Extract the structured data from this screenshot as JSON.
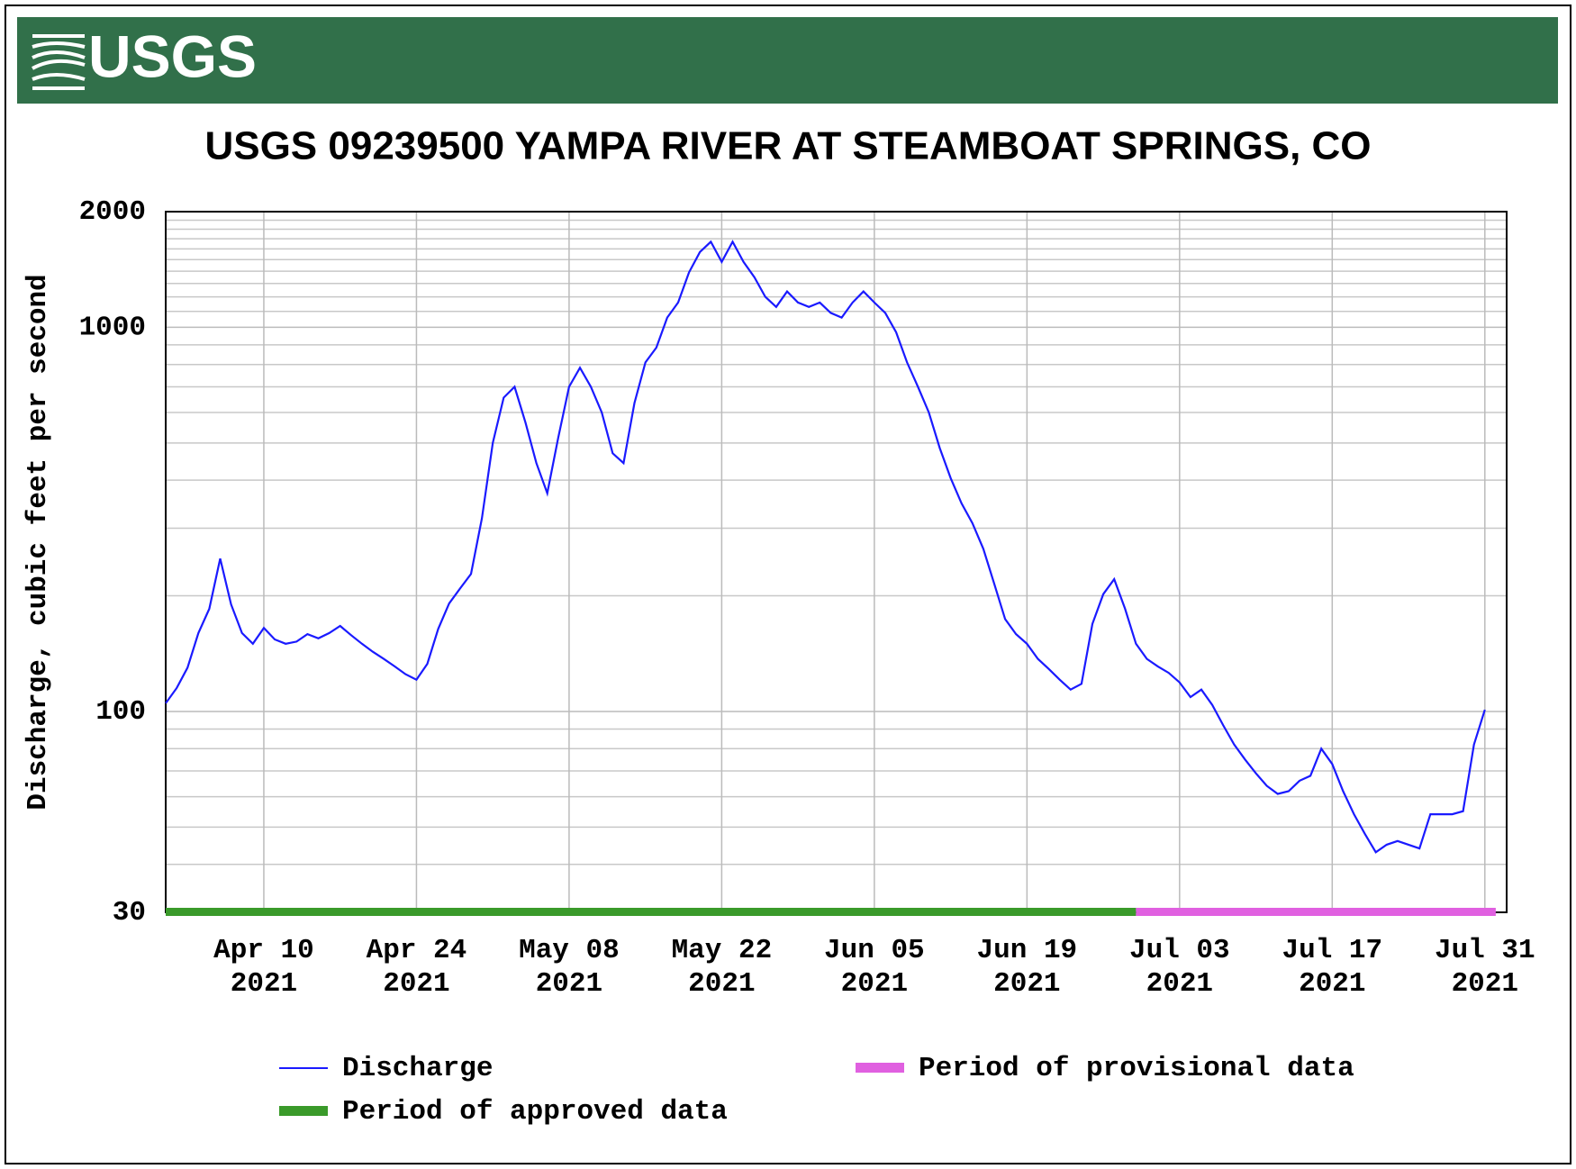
{
  "header": {
    "logo": "USGS"
  },
  "chart_data": {
    "type": "line",
    "title": "USGS 09239500 YAMPA RIVER AT STEAMBOAT SPRINGS, CO",
    "y_label": "Discharge, cubic feet per second",
    "log_y": true,
    "grid": true,
    "ylim": [
      30,
      2000
    ],
    "yticks": [
      30,
      100,
      1000,
      2000
    ],
    "y_minor_grid": [
      40,
      50,
      60,
      70,
      80,
      90,
      200,
      300,
      400,
      500,
      600,
      700,
      800,
      900,
      1100,
      1200,
      1300,
      1400,
      1500,
      1600,
      1700,
      1800,
      1900
    ],
    "xlim": [
      "2021-04-01",
      "2021-08-02"
    ],
    "xticks": [
      {
        "value": "2021-04-10",
        "label": [
          "Apr 10",
          "2021"
        ]
      },
      {
        "value": "2021-04-24",
        "label": [
          "Apr 24",
          "2021"
        ]
      },
      {
        "value": "2021-05-08",
        "label": [
          "May 08",
          "2021"
        ]
      },
      {
        "value": "2021-05-22",
        "label": [
          "May 22",
          "2021"
        ]
      },
      {
        "value": "2021-06-05",
        "label": [
          "Jun 05",
          "2021"
        ]
      },
      {
        "value": "2021-06-19",
        "label": [
          "Jun 19",
          "2021"
        ]
      },
      {
        "value": "2021-07-03",
        "label": [
          "Jul 03",
          "2021"
        ]
      },
      {
        "value": "2021-07-17",
        "label": [
          "Jul 17",
          "2021"
        ]
      },
      {
        "value": "2021-07-31",
        "label": [
          "Jul 31",
          "2021"
        ]
      }
    ],
    "x": [
      "2021-04-01",
      "2021-04-02",
      "2021-04-03",
      "2021-04-04",
      "2021-04-05",
      "2021-04-06",
      "2021-04-07",
      "2021-04-08",
      "2021-04-09",
      "2021-04-10",
      "2021-04-11",
      "2021-04-12",
      "2021-04-13",
      "2021-04-14",
      "2021-04-15",
      "2021-04-16",
      "2021-04-17",
      "2021-04-18",
      "2021-04-19",
      "2021-04-20",
      "2021-04-21",
      "2021-04-22",
      "2021-04-23",
      "2021-04-24",
      "2021-04-25",
      "2021-04-26",
      "2021-04-27",
      "2021-04-28",
      "2021-04-29",
      "2021-04-30",
      "2021-05-01",
      "2021-05-02",
      "2021-05-03",
      "2021-05-04",
      "2021-05-05",
      "2021-05-06",
      "2021-05-07",
      "2021-05-08",
      "2021-05-09",
      "2021-05-10",
      "2021-05-11",
      "2021-05-12",
      "2021-05-13",
      "2021-05-14",
      "2021-05-15",
      "2021-05-16",
      "2021-05-17",
      "2021-05-18",
      "2021-05-19",
      "2021-05-20",
      "2021-05-21",
      "2021-05-22",
      "2021-05-23",
      "2021-05-24",
      "2021-05-25",
      "2021-05-26",
      "2021-05-27",
      "2021-05-28",
      "2021-05-29",
      "2021-05-30",
      "2021-05-31",
      "2021-06-01",
      "2021-06-02",
      "2021-06-03",
      "2021-06-04",
      "2021-06-05",
      "2021-06-06",
      "2021-06-07",
      "2021-06-08",
      "2021-06-09",
      "2021-06-10",
      "2021-06-11",
      "2021-06-12",
      "2021-06-13",
      "2021-06-14",
      "2021-06-15",
      "2021-06-16",
      "2021-06-17",
      "2021-06-18",
      "2021-06-19",
      "2021-06-20",
      "2021-06-21",
      "2021-06-22",
      "2021-06-23",
      "2021-06-24",
      "2021-06-25",
      "2021-06-26",
      "2021-06-27",
      "2021-06-28",
      "2021-06-29",
      "2021-06-30",
      "2021-07-01",
      "2021-07-02",
      "2021-07-03",
      "2021-07-04",
      "2021-07-05",
      "2021-07-06",
      "2021-07-07",
      "2021-07-08",
      "2021-07-09",
      "2021-07-10",
      "2021-07-11",
      "2021-07-12",
      "2021-07-13",
      "2021-07-14",
      "2021-07-15",
      "2021-07-16",
      "2021-07-17",
      "2021-07-18",
      "2021-07-19",
      "2021-07-20",
      "2021-07-21",
      "2021-07-22",
      "2021-07-23",
      "2021-07-24",
      "2021-07-25",
      "2021-07-26",
      "2021-07-27",
      "2021-07-28",
      "2021-07-29",
      "2021-07-30",
      "2021-07-31"
    ],
    "series": [
      {
        "name": "Discharge",
        "color": "#1a1aff",
        "values": [
          105,
          115,
          130,
          160,
          185,
          250,
          190,
          160,
          150,
          165,
          154,
          150,
          152,
          159,
          155,
          160,
          167,
          158,
          150,
          143,
          137,
          131,
          125,
          121,
          133,
          164,
          191,
          209,
          228,
          318,
          500,
          656,
          700,
          565,
          443,
          370,
          515,
          700,
          785,
          700,
          600,
          470,
          443,
          635,
          810,
          885,
          1060,
          1160,
          1390,
          1570,
          1670,
          1480,
          1670,
          1480,
          1350,
          1200,
          1130,
          1240,
          1160,
          1130,
          1160,
          1090,
          1060,
          1160,
          1240,
          1160,
          1090,
          970,
          810,
          700,
          600,
          485,
          405,
          348,
          309,
          265,
          215,
          174,
          159,
          150,
          137,
          129,
          121,
          114,
          118,
          169,
          202,
          221,
          185,
          150,
          137,
          131,
          126,
          119,
          109,
          114,
          104,
          92,
          82,
          75,
          69,
          64,
          61,
          62,
          66,
          68,
          80,
          73,
          62,
          54,
          48,
          43,
          45,
          46,
          45,
          44,
          54,
          54,
          54,
          55,
          82,
          101
        ]
      }
    ],
    "periods": [
      {
        "name": "Period of approved data",
        "color": "#3a9a2a",
        "start": "2021-04-01",
        "end": "2021-06-29"
      },
      {
        "name": "Period of provisional data",
        "color": "#e060e0",
        "start": "2021-06-29",
        "end": "2021-08-01"
      }
    ]
  }
}
